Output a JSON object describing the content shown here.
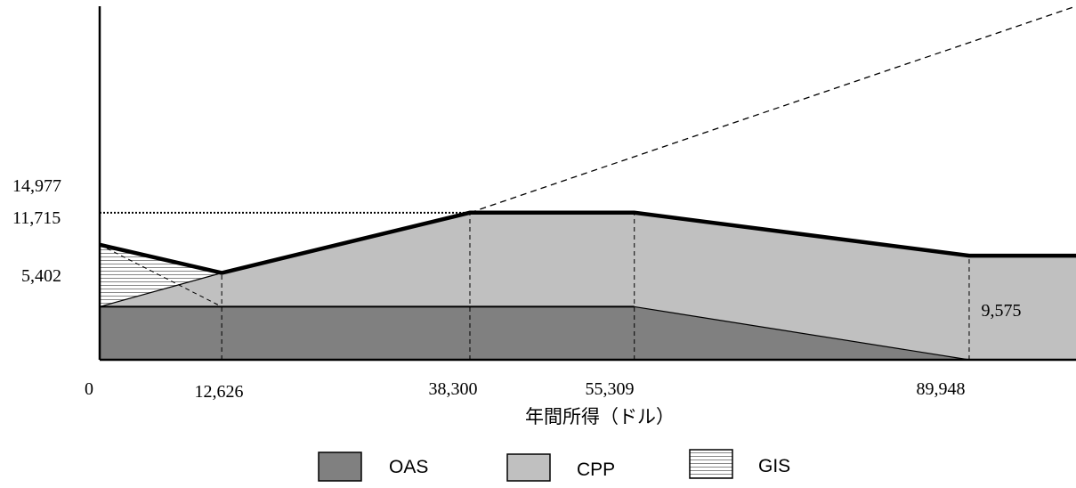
{
  "chart_data": {
    "type": "area",
    "xlabel": "年間所得（ドル）",
    "ylabel": "",
    "x_ticks": [
      "0",
      "12,626",
      "38,300",
      "55,309",
      "89,948"
    ],
    "y_ticks": [
      "14,977",
      "11,715",
      "5,402"
    ],
    "xlim": [
      0,
      101000
    ],
    "ylim": [
      0,
      36000
    ],
    "series": [
      {
        "name": "OAS",
        "color": "#808080",
        "points": [
          [
            0,
            5402
          ],
          [
            12626,
            5402
          ],
          [
            38300,
            5402
          ],
          [
            55309,
            5402
          ],
          [
            89948,
            0
          ],
          [
            101000,
            0
          ]
        ]
      },
      {
        "name": "CPP",
        "color": "#c0c0c0",
        "points": [
          [
            0,
            5402
          ],
          [
            12626,
            8840
          ],
          [
            38300,
            14977
          ],
          [
            55309,
            14977
          ],
          [
            89948,
            10600
          ],
          [
            101000,
            10600
          ]
        ]
      },
      {
        "name": "GIS",
        "color": "#ffffff",
        "pattern": "horizontal-lines",
        "points": [
          [
            0,
            11715
          ],
          [
            12626,
            8840
          ]
        ]
      }
    ],
    "total_line": [
      [
        0,
        11715
      ],
      [
        12626,
        8840
      ],
      [
        38300,
        14977
      ],
      [
        55309,
        14977
      ],
      [
        89948,
        10600
      ],
      [
        101000,
        10600
      ]
    ],
    "extension_line": [
      [
        38300,
        14977
      ],
      [
        101000,
        36000
      ]
    ],
    "annotations": [
      {
        "text": "9,575",
        "x": 94600,
        "y": 5200
      }
    ],
    "legend": {
      "position": "bottom",
      "items": [
        {
          "label": "OAS",
          "color": "#808080",
          "pattern": "solid"
        },
        {
          "label": "CPP",
          "color": "#c0c0c0",
          "pattern": "solid"
        },
        {
          "label": "GIS",
          "color": "#ffffff",
          "pattern": "horizontal-lines"
        }
      ]
    }
  }
}
